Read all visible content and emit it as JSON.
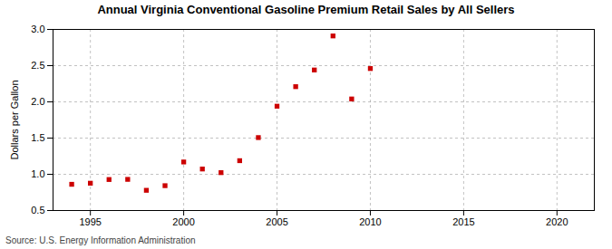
{
  "chart_data": {
    "type": "scatter",
    "title": "Annual Virginia Conventional Gasoline Premium Retail Sales by All Sellers",
    "ylabel": "Dollars per Gallon",
    "source": "Source: U.S. Energy Information Administration",
    "x": [
      1994,
      1995,
      1996,
      1997,
      1998,
      1999,
      2000,
      2001,
      2002,
      2003,
      2004,
      2005,
      2006,
      2007,
      2008,
      2009,
      2010
    ],
    "values": [
      0.862,
      0.877,
      0.928,
      0.93,
      0.779,
      0.843,
      1.17,
      1.073,
      1.023,
      1.188,
      1.507,
      1.94,
      2.21,
      2.44,
      2.91,
      2.04,
      2.46
    ],
    "color": "#cc0000",
    "marker": "square",
    "xlim": [
      1993,
      2022
    ],
    "ylim": [
      0.5,
      3.0
    ],
    "xticks": [
      1995,
      2000,
      2005,
      2010,
      2015,
      2020
    ],
    "yticks": [
      0.5,
      {
        "value": 1.0,
        "label": "1.0"
      },
      1.5,
      {
        "value": 2.0,
        "label": "2.0"
      },
      2.5,
      {
        "value": 3.0,
        "label": "3.0"
      }
    ],
    "grid": true
  }
}
